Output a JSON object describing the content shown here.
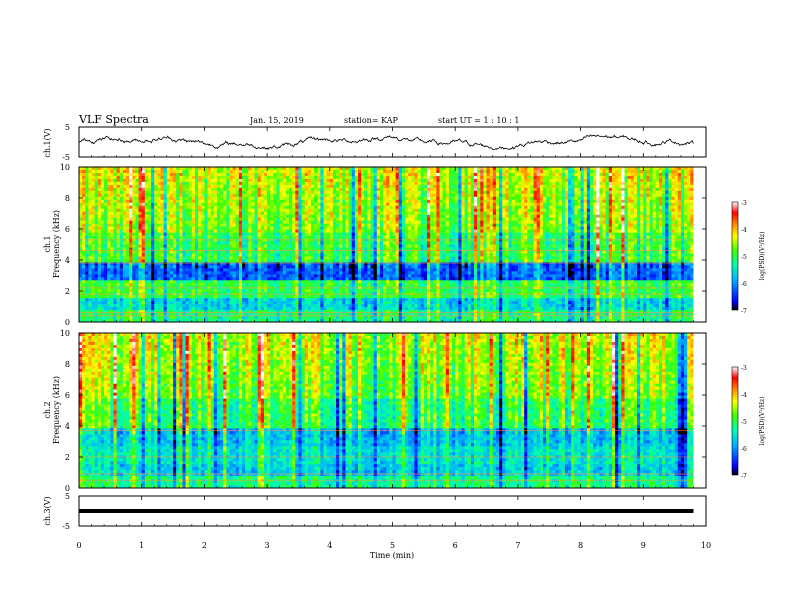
{
  "header": {
    "title": "VLF Spectra",
    "date": "Jan. 15, 2019",
    "station": "station= KAP",
    "start": "start  UT =   1 : 10 : 1"
  },
  "chart_data": [
    {
      "type": "line",
      "panel": "ch1-waveform",
      "ylabel": "ch.1(V)",
      "ylim": [
        -5,
        5
      ],
      "y_ticks": [
        "5",
        "-5"
      ],
      "series_color": "#000000",
      "approx_range": [
        -2.5,
        2.5
      ]
    },
    {
      "type": "heatmap",
      "panel": "ch1-spectrogram",
      "ylabel_line1": "ch.1",
      "ylabel_line2": "Frequency (kHz)",
      "ylim": [
        0,
        10
      ],
      "y_ticks": [
        "0",
        "2",
        "4",
        "6",
        "8",
        "10"
      ],
      "colorbar": {
        "label": "log(PSD)(V²/Hz)",
        "range": [
          -7,
          -3
        ],
        "ticks": [
          "-3",
          "-4",
          "-5",
          "-6",
          "-7"
        ],
        "colors": [
          "#000000",
          "#0000ff",
          "#00c0ff",
          "#00ffc0",
          "#40ff00",
          "#ffff00",
          "#ff8000",
          "#ff0000",
          "#ffffff"
        ]
      }
    },
    {
      "type": "heatmap",
      "panel": "ch2-spectrogram",
      "ylabel_line1": "ch.2",
      "ylabel_line2": "Frequency (kHz)",
      "ylim": [
        0,
        10
      ],
      "y_ticks": [
        "0",
        "2",
        "4",
        "6",
        "8",
        "10"
      ],
      "colorbar": {
        "label": "log(PSD)(V²/Hz)",
        "range": [
          -7,
          -3
        ],
        "ticks": [
          "-3",
          "-4",
          "-5",
          "-6",
          "-7"
        ]
      }
    },
    {
      "type": "line",
      "panel": "ch3-waveform",
      "ylabel": "ch.3(V)",
      "ylim": [
        -5,
        5
      ],
      "y_ticks": [
        "5",
        "-5"
      ],
      "constant_value": 0,
      "xlabel": "Time (min)",
      "x_range": [
        0,
        10
      ],
      "x_ticks": [
        "0",
        "1",
        "2",
        "3",
        "4",
        "5",
        "6",
        "7",
        "8",
        "9",
        "10"
      ],
      "data_end_min": 9.8
    }
  ]
}
